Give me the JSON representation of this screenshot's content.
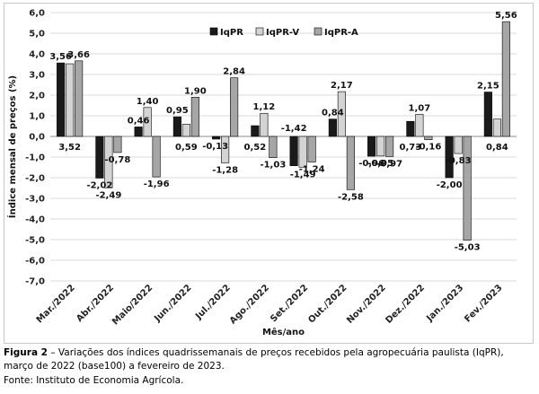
{
  "chart_data": {
    "type": "bar",
    "ylabel": "Índice mensal de preços (%)",
    "xlabel": "Mês/ano",
    "ylim": [
      -7,
      6
    ],
    "ytick_step": 1,
    "ytick_labels": [
      "-7,0",
      "-6,0",
      "-5,0",
      "-4,0",
      "-3,0",
      "-2,0",
      "-1,0",
      "0,0",
      "1,0",
      "2,0",
      "3,0",
      "4,0",
      "5,0",
      "6,0"
    ],
    "grid": "horizontal",
    "legend_position": "top-center",
    "categories": [
      "Mar./2022",
      "Abr./2022",
      "Maio/2022",
      "Jun./2022",
      "Jul./2022",
      "Ago./2022",
      "Set./2022",
      "Out./2022",
      "Nov./2022",
      "Dez./2022",
      "Jan./2023",
      "Fev./2023"
    ],
    "series": [
      {
        "name": "IqPR",
        "color": "#1a1a1a",
        "values": [
          3.56,
          -2.02,
          0.46,
          0.95,
          -0.13,
          0.52,
          -1.42,
          0.84,
          -0.96,
          0.73,
          -2.0,
          2.15
        ],
        "labels": [
          "3,56",
          "-2,02",
          "0,46",
          "0,95",
          "-0,13",
          "0,52",
          "-1,42",
          "0,84",
          "-0,96",
          "0,73",
          "-2,00",
          "2,15"
        ]
      },
      {
        "name": "IqPR-V",
        "color": "#d4d4d4",
        "values": [
          3.52,
          -2.49,
          1.4,
          0.59,
          -1.28,
          1.12,
          -1.49,
          2.17,
          -0.95,
          1.07,
          -0.83,
          0.84
        ],
        "labels": [
          "3,52",
          "-2,49",
          "1,40",
          "0,59",
          "-1,28",
          "1,12",
          "-1,49",
          "2,17",
          "-0,95",
          "1,07",
          "-0,83",
          "0,84"
        ]
      },
      {
        "name": "IqPR-A",
        "color": "#a6a6a6",
        "values": [
          3.66,
          -0.78,
          -1.96,
          1.9,
          2.84,
          -1.03,
          -1.24,
          -2.58,
          -0.97,
          -0.16,
          -5.03,
          5.56
        ],
        "labels": [
          "3,66",
          "-0,78",
          "-1,96",
          "1,90",
          "2,84",
          "-1,03",
          "-1,24",
          "-2,58",
          "-0,97",
          "-0,16",
          "-5,03",
          "5,56"
        ]
      }
    ]
  },
  "caption": {
    "label": "Figura 2",
    "text": " – Variações dos índices quadrissemanais de preços recebidos pela agropecuária paulista (IqPR), março de 2022 (base100) a fevereiro de 2023."
  },
  "source": "Fonte: Instituto de Economia Agrícola."
}
